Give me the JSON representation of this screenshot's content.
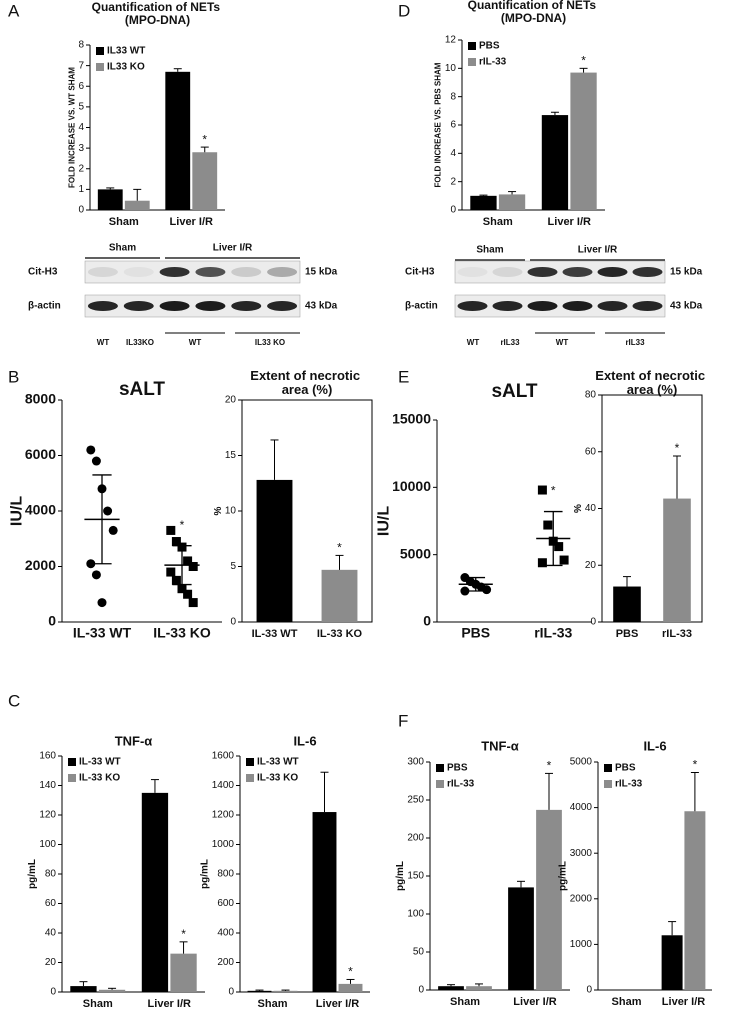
{
  "panel_labels": [
    "A",
    "B",
    "C",
    "D",
    "E",
    "F"
  ],
  "blots": [
    {
      "groups": [
        "Sham",
        "Liver I/R"
      ],
      "rows": [
        {
          "label": "Cit-H3",
          "size": "15 kDa"
        },
        {
          "label": "β-actin",
          "size": "43 kDa"
        }
      ],
      "lanes": [
        "WT",
        "IL33KO",
        "WT",
        "IL33 KO"
      ]
    },
    {
      "groups": [
        "Sham",
        "Liver I/R"
      ],
      "rows": [
        {
          "label": "Cit-H3",
          "size": "15 kDa"
        },
        {
          "label": "β-actin",
          "size": "43 kDa"
        }
      ],
      "lanes": [
        "WT",
        "rIL33",
        "WT",
        "rIL33"
      ]
    }
  ],
  "chart_data": [
    {
      "type": "bar",
      "title": "Quantification of NETs (MPO-DNA)",
      "y_label": "FOLD INCREASE VS. WT SHAM",
      "categories": [
        "Sham",
        "Liver I/R"
      ],
      "series": [
        {
          "name": "IL33 WT",
          "color": "#000000",
          "values": [
            1.0,
            6.7
          ],
          "errors": [
            0.07,
            0.15
          ]
        },
        {
          "name": "IL33 KO",
          "color": "#8c8c8c",
          "values": [
            0.45,
            2.8
          ],
          "errors": [
            0.55,
            0.25
          ],
          "annotations": [
            null,
            "*"
          ]
        }
      ],
      "ylim": [
        0,
        8
      ],
      "yticks": [
        0,
        1,
        2,
        3,
        4,
        5,
        6,
        7,
        8
      ],
      "legend": "upper left"
    },
    {
      "type": "bar",
      "title": "Quantification of NETs (MPO-DNA)",
      "y_label": "FOLD INCREASE VS. PBS SHAM",
      "categories": [
        "Sham",
        "Liver I/R"
      ],
      "series": [
        {
          "name": "PBS",
          "color": "#000000",
          "values": [
            1.0,
            6.7
          ],
          "errors": [
            0.05,
            0.2
          ]
        },
        {
          "name": "rIL-33",
          "color": "#8c8c8c",
          "values": [
            1.1,
            9.7
          ],
          "errors": [
            0.2,
            0.3
          ],
          "annotations": [
            null,
            "*"
          ]
        }
      ],
      "ylim": [
        0,
        12
      ],
      "yticks": [
        0,
        2,
        4,
        6,
        8,
        10,
        12
      ],
      "legend": "upper left"
    },
    {
      "type": "dot-plot",
      "title": "sALT",
      "y_label": "IU/L",
      "categories": [
        "IL-33 WT",
        "IL-33 KO"
      ],
      "markers": [
        "circle",
        "square"
      ],
      "points": [
        [
          6200,
          5800,
          4800,
          4000,
          3300,
          2100,
          1700,
          700
        ],
        [
          3300,
          2900,
          2700,
          2200,
          2000,
          1800,
          1500,
          1200,
          1000,
          700
        ]
      ],
      "mean": [
        3700,
        2050
      ],
      "sd": [
        1600,
        700
      ],
      "annotations": [
        null,
        "*"
      ],
      "ylim": [
        0,
        8000
      ],
      "yticks": [
        0,
        2000,
        4000,
        6000,
        8000
      ]
    },
    {
      "type": "bar",
      "title": "Extent of necrotic area (%)",
      "y_label": "%",
      "categories": [
        "IL-33 WT",
        "IL-33 KO"
      ],
      "series": [
        {
          "colors": [
            "#000000",
            "#8c8c8c"
          ],
          "values": [
            12.8,
            4.7
          ],
          "errors": [
            3.6,
            1.3
          ],
          "annotations": [
            null,
            "*"
          ]
        }
      ],
      "ylim": [
        0,
        20
      ],
      "yticks": [
        0,
        5,
        10,
        15,
        20
      ],
      "frame": true
    },
    {
      "type": "dot-plot",
      "title": "sALT",
      "y_label": "IU/L",
      "categories": [
        "PBS",
        "rIL-33"
      ],
      "markers": [
        "circle",
        "square"
      ],
      "points": [
        [
          3300,
          3000,
          2800,
          2600,
          2400,
          2300
        ],
        [
          9800,
          7200,
          6000,
          5600,
          4600,
          4400
        ]
      ],
      "mean": [
        2800,
        6200
      ],
      "sd": [
        500,
        2000
      ],
      "annotations": [
        null,
        "*"
      ],
      "ylim": [
        0,
        15000
      ],
      "yticks": [
        0,
        5000,
        10000,
        15000
      ]
    },
    {
      "type": "bar",
      "title": "Extent of necrotic area (%)",
      "y_label": "%",
      "categories": [
        "PBS",
        "rIL-33"
      ],
      "series": [
        {
          "colors": [
            "#000000",
            "#8c8c8c"
          ],
          "values": [
            12.5,
            43.5
          ],
          "errors": [
            3.5,
            15
          ],
          "annotations": [
            null,
            "*"
          ]
        }
      ],
      "ylim": [
        0,
        80
      ],
      "yticks": [
        0,
        20,
        40,
        60,
        80
      ],
      "frame": true
    },
    {
      "type": "bar",
      "title": "TNF-α",
      "y_label": "pg/mL",
      "categories": [
        "Sham",
        "Liver I/R"
      ],
      "series": [
        {
          "name": "IL-33 WT",
          "color": "#000000",
          "values": [
            4,
            135
          ],
          "errors": [
            3,
            9
          ]
        },
        {
          "name": "IL-33 KO",
          "color": "#8c8c8c",
          "values": [
            1.5,
            26
          ],
          "errors": [
            1,
            8
          ],
          "annotations": [
            null,
            "*"
          ]
        }
      ],
      "ylim": [
        0,
        160
      ],
      "yticks": [
        0,
        20,
        40,
        60,
        80,
        100,
        120,
        140,
        160
      ],
      "legend": "upper left"
    },
    {
      "type": "bar",
      "title": "IL-6",
      "y_label": "pg/mL",
      "categories": [
        "Sham",
        "Liver I/R"
      ],
      "series": [
        {
          "name": "IL-33 WT",
          "color": "#000000",
          "values": [
            8,
            1220
          ],
          "errors": [
            5,
            270
          ]
        },
        {
          "name": "IL-33 KO",
          "color": "#8c8c8c",
          "values": [
            8,
            55
          ],
          "errors": [
            5,
            30
          ],
          "annotations": [
            null,
            "*"
          ]
        }
      ],
      "ylim": [
        0,
        1600
      ],
      "yticks": [
        0,
        200,
        400,
        600,
        800,
        1000,
        1200,
        1400,
        1600
      ],
      "legend": "upper left"
    },
    {
      "type": "bar",
      "title": "TNF-α",
      "y_label": "pg/mL",
      "categories": [
        "Sham",
        "Liver I/R"
      ],
      "series": [
        {
          "name": "PBS",
          "color": "#000000",
          "values": [
            5,
            135
          ],
          "errors": [
            2,
            8
          ]
        },
        {
          "name": "rIL-33",
          "color": "#8c8c8c",
          "values": [
            5,
            237
          ],
          "errors": [
            3,
            48
          ],
          "annotations": [
            null,
            "*"
          ]
        }
      ],
      "ylim": [
        0,
        300
      ],
      "yticks": [
        0,
        50,
        100,
        150,
        200,
        250,
        300
      ],
      "legend": "upper left"
    },
    {
      "type": "bar",
      "title": "IL-6",
      "y_label": "pg/mL",
      "categories": [
        "Sham",
        "Liver I/R"
      ],
      "series": [
        {
          "name": "PBS",
          "color": "#000000",
          "values": [
            0,
            1200
          ],
          "errors": [
            0,
            300
          ]
        },
        {
          "name": "rIL-33",
          "color": "#8c8c8c",
          "values": [
            0,
            3920
          ],
          "errors": [
            0,
            850
          ],
          "annotations": [
            null,
            "*"
          ]
        }
      ],
      "ylim": [
        0,
        5000
      ],
      "yticks": [
        0,
        1000,
        2000,
        3000,
        4000,
        5000
      ],
      "legend": "upper left"
    }
  ]
}
